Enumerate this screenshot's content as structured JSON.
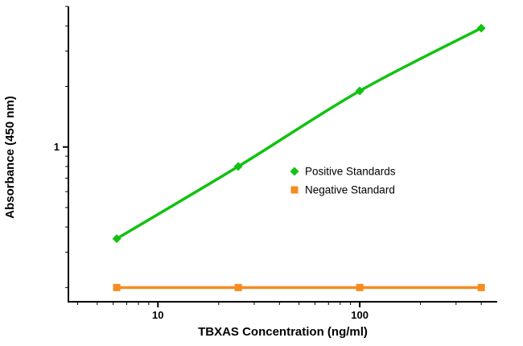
{
  "chart_data": {
    "type": "line",
    "title": "",
    "xlabel": "TBXAS Concentration (ng/ml)",
    "ylabel": "Absorbance (450 nm)",
    "x_scale": "log",
    "y_scale": "log",
    "xlim": [
      3.6,
      480
    ],
    "ylim": [
      0.17,
      5
    ],
    "grid": false,
    "legend_position": "center-right",
    "axis_color": "#000000",
    "x_major_ticks": [
      10,
      100
    ],
    "x_major_tick_labels": [
      "10",
      "100"
    ],
    "x_minor_ticks": [
      4,
      5,
      6,
      7,
      8,
      9,
      20,
      30,
      40,
      50,
      60,
      70,
      80,
      90,
      200,
      300,
      400
    ],
    "y_major_ticks": [
      1
    ],
    "y_major_tick_labels": [
      "1"
    ],
    "y_minor_ticks": [
      0.2,
      0.3,
      0.4,
      0.5,
      0.6,
      0.7,
      0.8,
      0.9,
      2,
      3,
      4,
      5
    ],
    "series": [
      {
        "name": "Positive Standards",
        "color": "#11c211",
        "marker": "diamond",
        "x": [
          6.25,
          25,
          100,
          400
        ],
        "y": [
          0.35,
          0.8,
          1.9,
          3.9
        ]
      },
      {
        "name": "Negative Standard",
        "color": "#f78b1f",
        "marker": "square",
        "x": [
          6.25,
          25,
          100,
          400
        ],
        "y": [
          0.2,
          0.2,
          0.2,
          0.2
        ]
      }
    ]
  }
}
